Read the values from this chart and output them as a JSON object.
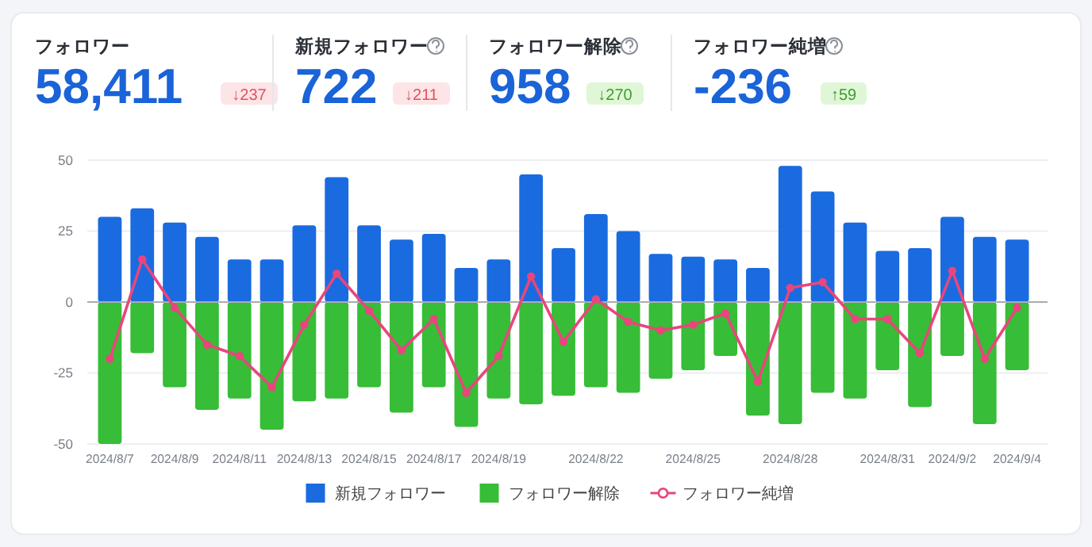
{
  "chart_data": [
    {
      "type": "other",
      "annotations": [
        "フォロワー",
        "58,411",
        "↓237",
        "新規フォロワー",
        "722",
        "↓211",
        "フォロワー解除",
        "958",
        "↓270",
        "フォロワー純増",
        "-236",
        "↑59"
      ]
    },
    {
      "type": "bar",
      "stacked": true,
      "categories": [
        "2024/8/7",
        null,
        "2024/8/9",
        null,
        "2024/8/11",
        null,
        "2024/8/13",
        null,
        "2024/8/15",
        null,
        "2024/8/17",
        null,
        "2024/8/19",
        null,
        null,
        "2024/8/22",
        null,
        null,
        "2024/8/25",
        null,
        null,
        "2024/8/28",
        null,
        null,
        "2024/8/31",
        null,
        "2024/9/2",
        null,
        "2024/9/4"
      ],
      "series": [
        {
          "name": "新規フォロワー",
          "color": "#1a6be0",
          "values": [
            30,
            33,
            28,
            23,
            15,
            15,
            27,
            44,
            27,
            22,
            24,
            12,
            15,
            45,
            19,
            31,
            25,
            17,
            16,
            15,
            12,
            48,
            39,
            28,
            18,
            19,
            30,
            23,
            22
          ]
        },
        {
          "name": "フォロワー解除",
          "color": "#37bd37",
          "values": [
            -50,
            -18,
            -30,
            -38,
            -34,
            -45,
            -35,
            -34,
            -30,
            -39,
            -30,
            -44,
            -34,
            -36,
            -33,
            -30,
            -32,
            -27,
            -24,
            -19,
            -40,
            -43,
            -32,
            -34,
            -24,
            -37,
            -19,
            -43,
            -24
          ]
        },
        {
          "name": "フォロワー純増",
          "type": "line",
          "color": "#e8467c",
          "values": [
            -20,
            15,
            -2,
            -15,
            -19,
            -30,
            -8,
            10,
            -3,
            -17,
            -6,
            -32,
            -19,
            9,
            -14,
            1,
            -7,
            -10,
            -8,
            -4,
            -28,
            5,
            7,
            -6,
            -6,
            -18,
            11,
            -20,
            -2
          ]
        }
      ],
      "ylim": [
        -50,
        50
      ],
      "yticks": [
        -50,
        -25,
        0,
        25,
        50
      ],
      "grid": "y",
      "legend": "bottom",
      "marker": "circle",
      "line_style": "solid"
    }
  ]
}
